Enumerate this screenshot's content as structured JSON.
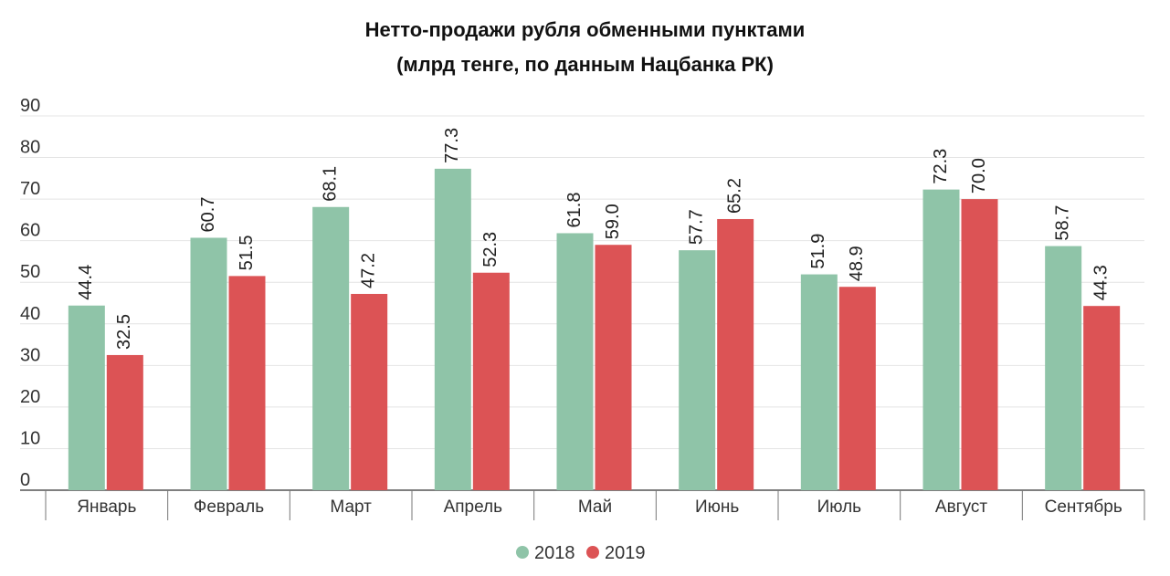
{
  "chart_data": {
    "type": "bar",
    "title_line1": "Нетто-продажи рубля обменными пунктами",
    "title_line2": "(млрд тенге, по данным Нацбанка РК)",
    "xlabel": "",
    "ylabel": "",
    "ylim": [
      0,
      90
    ],
    "yticks": [
      0,
      10,
      20,
      30,
      40,
      50,
      60,
      70,
      80,
      90
    ],
    "grid": true,
    "legend_position": "bottom-center",
    "categories": [
      "Январь",
      "Февраль",
      "Март",
      "Апрель",
      "Май",
      "Июнь",
      "Июль",
      "Август",
      "Сентябрь"
    ],
    "series": [
      {
        "name": "2018",
        "color": "#8fc4a8",
        "values": [
          44.4,
          60.7,
          68.1,
          77.3,
          61.8,
          57.7,
          51.9,
          72.3,
          58.7
        ],
        "labels": [
          "44.4",
          "60.7",
          "68.1",
          "77.3",
          "61.8",
          "57.7",
          "51.9",
          "72.3",
          "58.7"
        ]
      },
      {
        "name": "2019",
        "color": "#dc5355",
        "values": [
          32.5,
          51.5,
          47.2,
          52.3,
          59.0,
          65.2,
          48.9,
          70.0,
          44.3
        ],
        "labels": [
          "32.5",
          "51.5",
          "47.2",
          "52.3",
          "59.0",
          "65.2",
          "48.9",
          "70.0",
          "44.3"
        ]
      }
    ]
  }
}
